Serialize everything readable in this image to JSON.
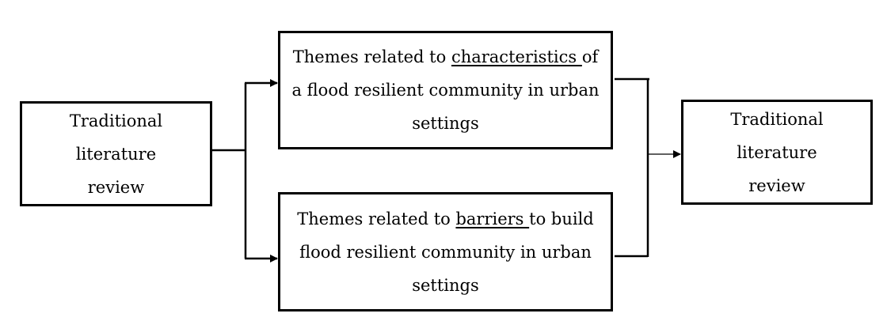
{
  "nodes": {
    "left": {
      "text": "Traditional literature review"
    },
    "top": {
      "pre": "Themes related to ",
      "key": "characteristics ",
      "post": "of a flood resilient community in urban settings"
    },
    "bottom": {
      "pre": "Themes related to ",
      "key": "barriers ",
      "post": "to build flood resilient community in urban settings"
    },
    "right": {
      "text": "Traditional literature review"
    }
  }
}
